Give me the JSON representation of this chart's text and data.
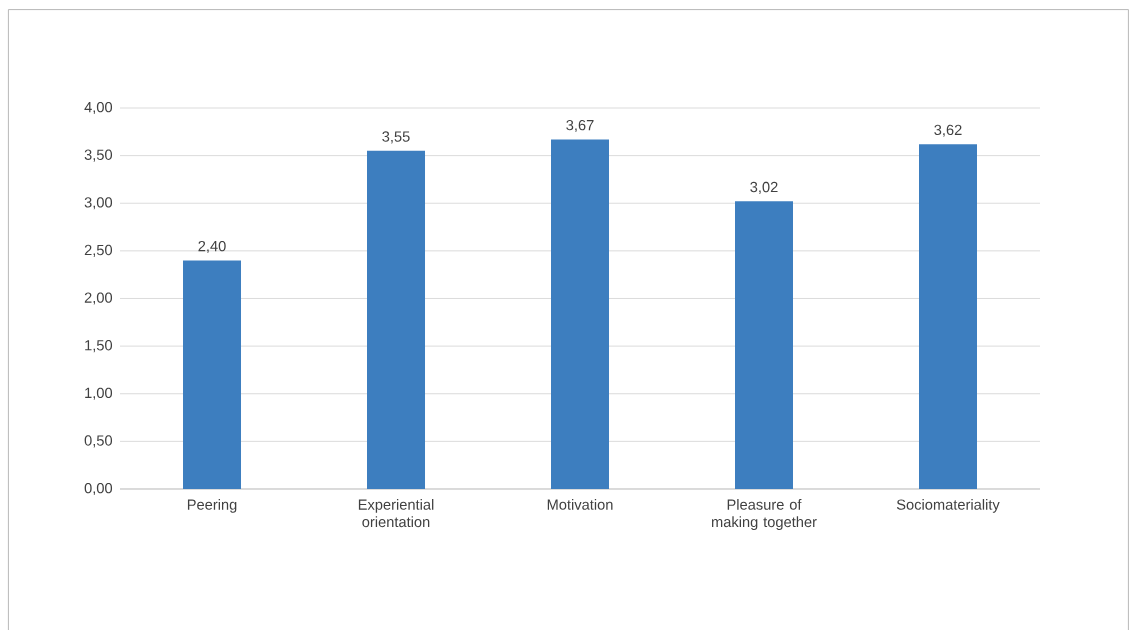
{
  "chart_data": {
    "type": "bar",
    "categories": [
      "Peering",
      "Experiential orientation",
      "Motivation",
      "Pleasure of making together",
      "Sociomateriality"
    ],
    "values": [
      2.4,
      3.55,
      3.67,
      3.02,
      3.62
    ],
    "value_labels": [
      "2,40",
      "3,55",
      "3,67",
      "3,02",
      "3,62"
    ],
    "color": "#3d7ebf",
    "ylim": [
      0,
      4
    ],
    "yticks": [
      {
        "value": 0,
        "label": "0,00"
      },
      {
        "value": 0.5,
        "label": "0,50"
      },
      {
        "value": 1,
        "label": "1,00"
      },
      {
        "value": 1.5,
        "label": "1,50"
      },
      {
        "value": 2,
        "label": "2,00"
      },
      {
        "value": 2.5,
        "label": "2,50"
      },
      {
        "value": 3,
        "label": "3,00"
      },
      {
        "value": 3.5,
        "label": "3,50"
      },
      {
        "value": 4,
        "label": "4,00"
      }
    ],
    "grid": "y"
  }
}
